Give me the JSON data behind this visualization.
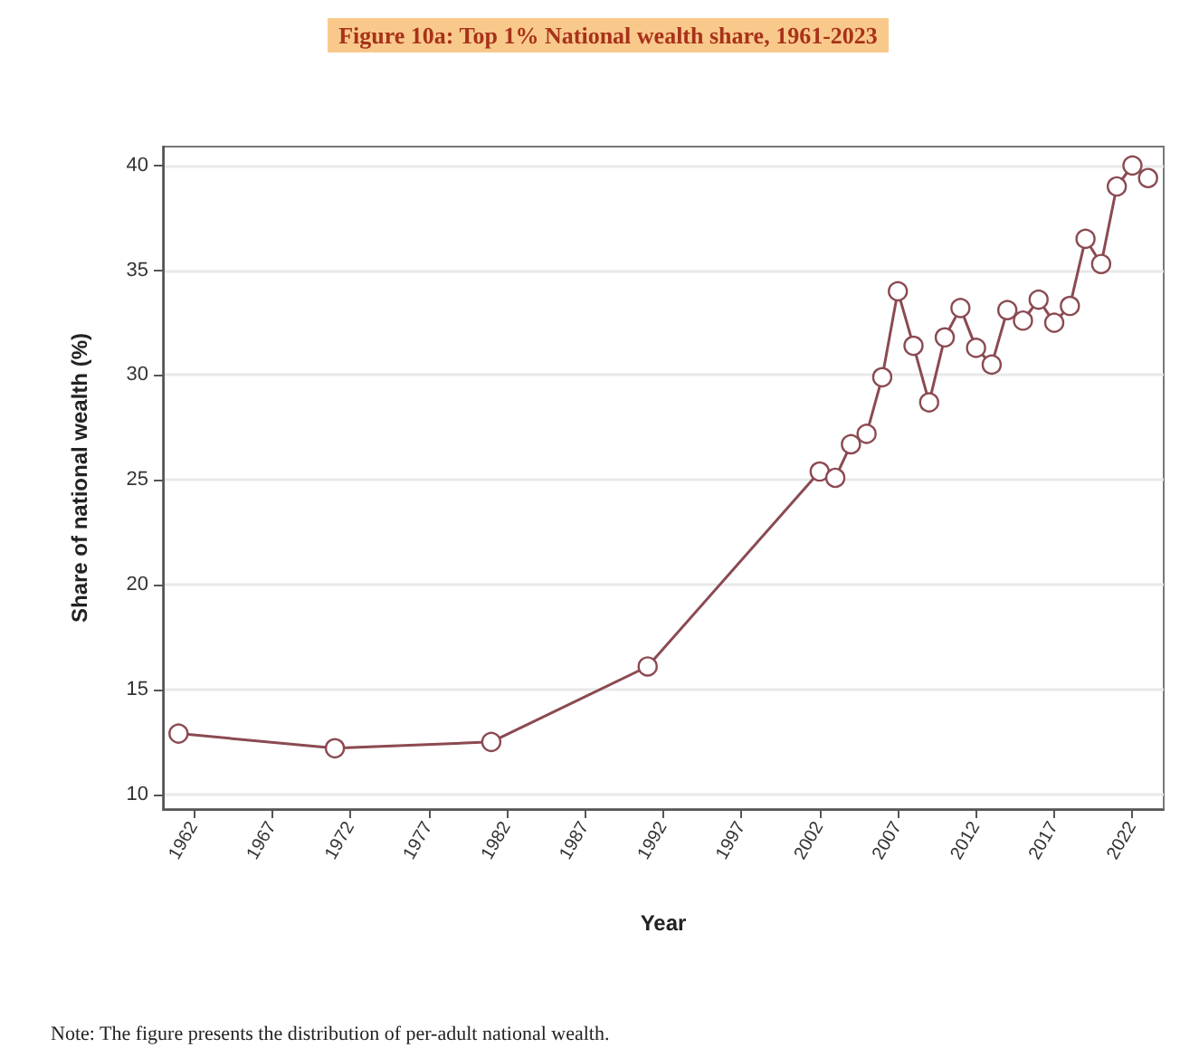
{
  "chart_data": {
    "type": "line",
    "title": "Figure 10a: Top 1% National wealth share, 1961-2023",
    "xlabel": "Year",
    "ylabel": "Share of national wealth (%)",
    "x": [
      1961,
      1971,
      1981,
      1991,
      2002,
      2003,
      2004,
      2005,
      2006,
      2007,
      2008,
      2009,
      2010,
      2011,
      2012,
      2013,
      2014,
      2015,
      2016,
      2017,
      2018,
      2019,
      2020,
      2021,
      2022,
      2023
    ],
    "series": [
      {
        "color": "#8b4a52",
        "values": [
          12.9,
          12.2,
          12.5,
          16.1,
          25.4,
          25.1,
          26.7,
          27.2,
          29.9,
          34.0,
          31.4,
          28.7,
          31.8,
          33.2,
          31.3,
          30.5,
          33.1,
          32.6,
          33.6,
          32.5,
          33.3,
          36.5,
          35.3,
          39.0,
          40.0,
          39.4
        ]
      }
    ],
    "xlim": [
      1960,
      2024
    ],
    "xticks": [
      1962,
      1967,
      1972,
      1977,
      1982,
      1987,
      1992,
      1997,
      2002,
      2007,
      2012,
      2017,
      2022
    ],
    "ylim": [
      9.3,
      40.9
    ],
    "yticks": [
      10,
      15,
      20,
      25,
      30,
      35,
      40
    ],
    "grid": "y",
    "marker": "circle",
    "line_style": "solid",
    "annotations": [
      "Note: The figure presents the distribution of per-adult national wealth."
    ]
  }
}
